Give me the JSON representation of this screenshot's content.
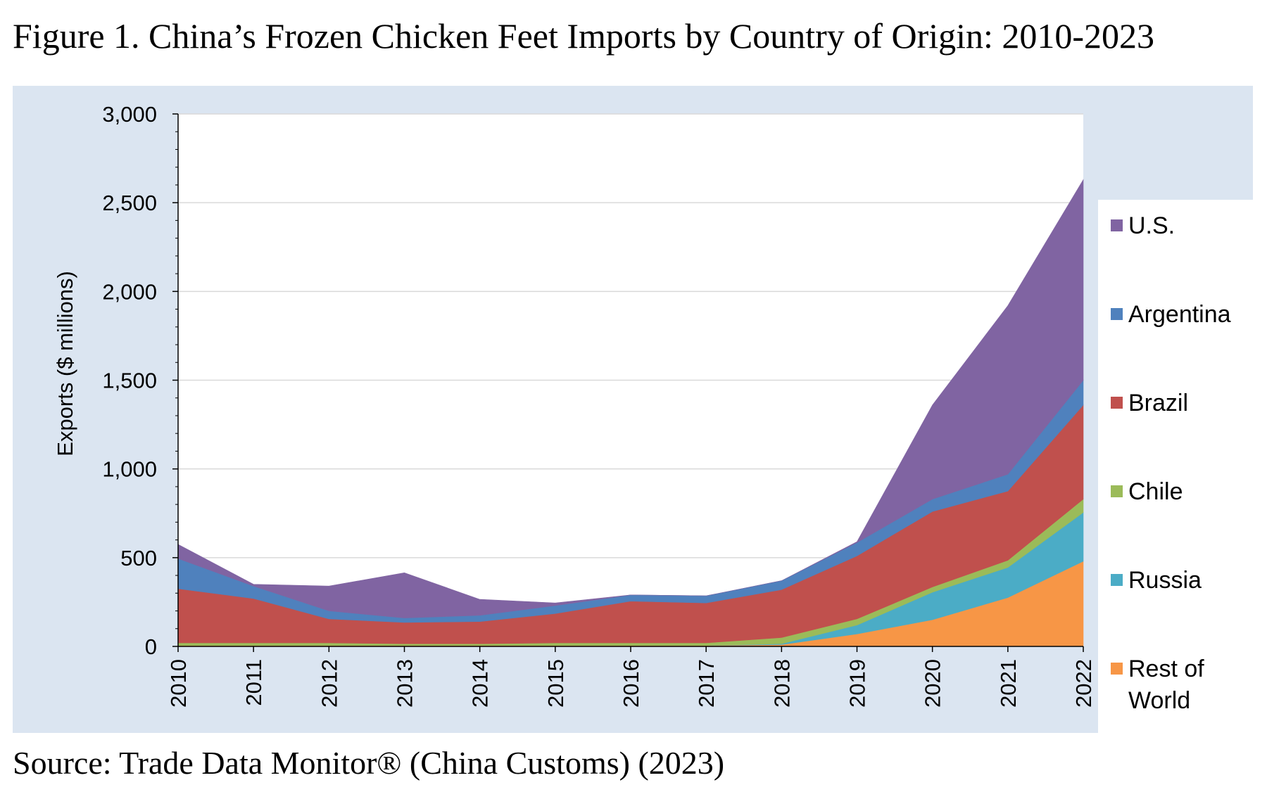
{
  "figure_title": "Figure 1. China’s Frozen Chicken Feet Imports by Country of Origin: 2010-2023",
  "source": "Source: Trade Data Monitor® (China Customs) (2023)",
  "chart_data": {
    "type": "area",
    "stacked": true,
    "title": "",
    "xlabel": "",
    "ylabel": "Exports ($ millions)",
    "ylim": [
      0,
      3000
    ],
    "yticks": [
      0,
      500,
      1000,
      1500,
      2000,
      2500,
      3000
    ],
    "ytick_labels": [
      "0",
      "500",
      "1,000",
      "1,500",
      "2,000",
      "2,500",
      "3,000"
    ],
    "grid": true,
    "legend_position": "right",
    "categories": [
      "2010",
      "2011",
      "2012",
      "2013",
      "2014",
      "2015",
      "2016",
      "2017",
      "2018",
      "2019",
      "2020",
      "2021",
      "2022"
    ],
    "series": [
      {
        "name": "Rest of World",
        "legend_label": "Rest of\nWorld",
        "color": "#f79646",
        "values": [
          5,
          5,
          5,
          5,
          5,
          5,
          5,
          5,
          10,
          70,
          150,
          275,
          480
        ]
      },
      {
        "name": "Russia",
        "legend_label": "Russia",
        "color": "#4bacc6",
        "values": [
          0,
          0,
          0,
          0,
          0,
          0,
          0,
          0,
          5,
          50,
          155,
          170,
          275
        ]
      },
      {
        "name": "Chile",
        "legend_label": "Chile",
        "color": "#9bbb59",
        "values": [
          15,
          15,
          15,
          10,
          10,
          15,
          15,
          15,
          35,
          35,
          30,
          40,
          75
        ]
      },
      {
        "name": "Brazil",
        "legend_label": "Brazil",
        "color": "#c0504d",
        "values": [
          305,
          250,
          135,
          120,
          125,
          165,
          235,
          225,
          270,
          355,
          425,
          390,
          530
        ]
      },
      {
        "name": "Argentina",
        "legend_label": "Argentina",
        "color": "#4f81bd",
        "values": [
          170,
          70,
          45,
          25,
          35,
          45,
          35,
          40,
          50,
          75,
          70,
          95,
          140
        ]
      },
      {
        "name": "U.S.",
        "legend_label": "U.S.",
        "color": "#8064a2",
        "values": [
          80,
          10,
          140,
          255,
          90,
          15,
          0,
          0,
          0,
          5,
          530,
          950,
          1130
        ]
      }
    ]
  }
}
